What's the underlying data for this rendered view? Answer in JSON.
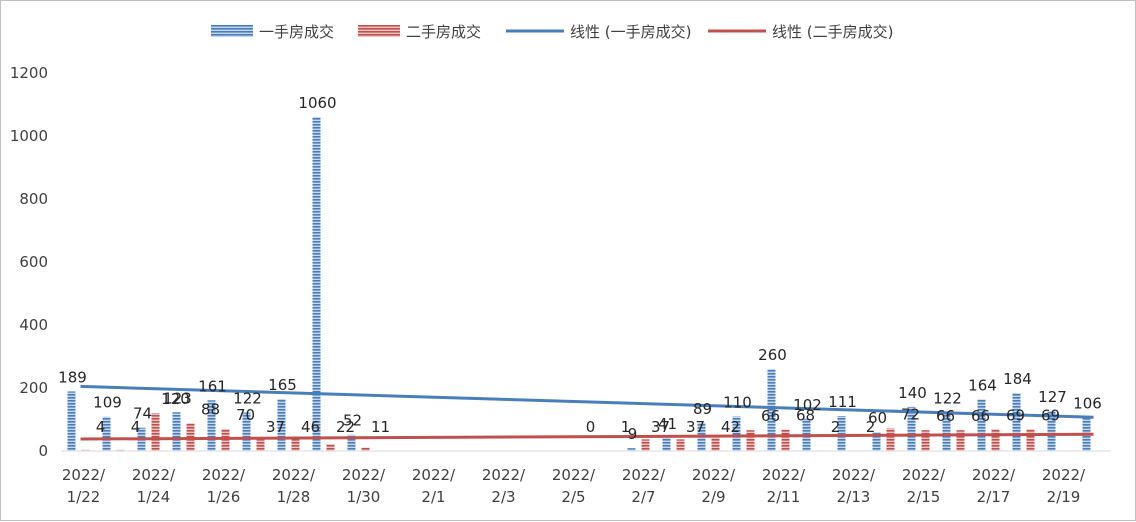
{
  "chart_data": {
    "type": "bar",
    "categories": [
      "2022/1/22",
      "2022/1/23",
      "2022/1/24",
      "2022/1/25",
      "2022/1/26",
      "2022/1/27",
      "2022/1/28",
      "2022/1/29",
      "2022/1/30",
      "2022/1/31",
      "2022/2/1",
      "2022/2/2",
      "2022/2/3",
      "2022/2/4",
      "2022/2/5",
      "2022/2/6",
      "2022/2/7",
      "2022/2/8",
      "2022/2/9",
      "2022/2/10",
      "2022/2/11",
      "2022/2/12",
      "2022/2/13",
      "2022/2/14",
      "2022/2/15",
      "2022/2/16",
      "2022/2/17",
      "2022/2/18",
      "2022/2/19",
      "2022/2/20"
    ],
    "x_tick_labels": [
      "2022/|1/22",
      "2022/|1/24",
      "2022/|1/26",
      "2022/|1/28",
      "2022/|1/30",
      "2022/|2/1",
      "2022/|2/3",
      "2022/|2/5",
      "2022/|2/7",
      "2022/|2/9",
      "2022/|2/11",
      "2022/|2/13",
      "2022/|2/15",
      "2022/|2/17",
      "2022/|2/19"
    ],
    "series": [
      {
        "name": "一手房成交",
        "color": "#4a7ebb",
        "values": [
          189,
          109,
          74,
          123,
          161,
          122,
          165,
          1060,
          52,
          null,
          null,
          null,
          null,
          null,
          null,
          null,
          9,
          41,
          89,
          110,
          260,
          102,
          111,
          60,
          140,
          122,
          164,
          184,
          127,
          106
        ],
        "labels": [
          "189",
          "109",
          "74",
          "123",
          "161",
          "122",
          "165",
          "1060",
          "52",
          "",
          "",
          "",
          "",
          "",
          "",
          "",
          "9",
          "41",
          "89",
          "110",
          "260",
          "102",
          "111",
          "60",
          "140",
          "122",
          "164",
          "184",
          "127",
          "106"
        ]
      },
      {
        "name": "二手房成交",
        "color": "#c0504d",
        "values": [
          4,
          4,
          120,
          88,
          70,
          37,
          46,
          22,
          11,
          null,
          null,
          null,
          null,
          null,
          0,
          1,
          37,
          37,
          42,
          66,
          68,
          2,
          2,
          72,
          66,
          66,
          69,
          69,
          null,
          null
        ],
        "labels": [
          "4",
          "4",
          "120",
          "88",
          "70",
          "37",
          "46",
          "22",
          "11",
          "",
          "",
          "",
          "",
          "",
          "0",
          "1",
          "37",
          "37",
          "42",
          "66",
          "68",
          "2",
          "2",
          "72",
          "66",
          "66",
          "69",
          "69",
          "",
          ""
        ]
      }
    ],
    "trendlines": [
      {
        "name": "线性 (一手房成交)",
        "color": "#4a7ebb",
        "start": 205,
        "end": 107
      },
      {
        "name": "线性 (二手房成交)",
        "color": "#c0504d",
        "start": 38,
        "end": 53
      }
    ],
    "y_ticks": [
      "0",
      "200",
      "400",
      "600",
      "800",
      "1000",
      "1200"
    ],
    "ylim": [
      0,
      1200
    ],
    "legend_position": "top",
    "grid": false
  }
}
